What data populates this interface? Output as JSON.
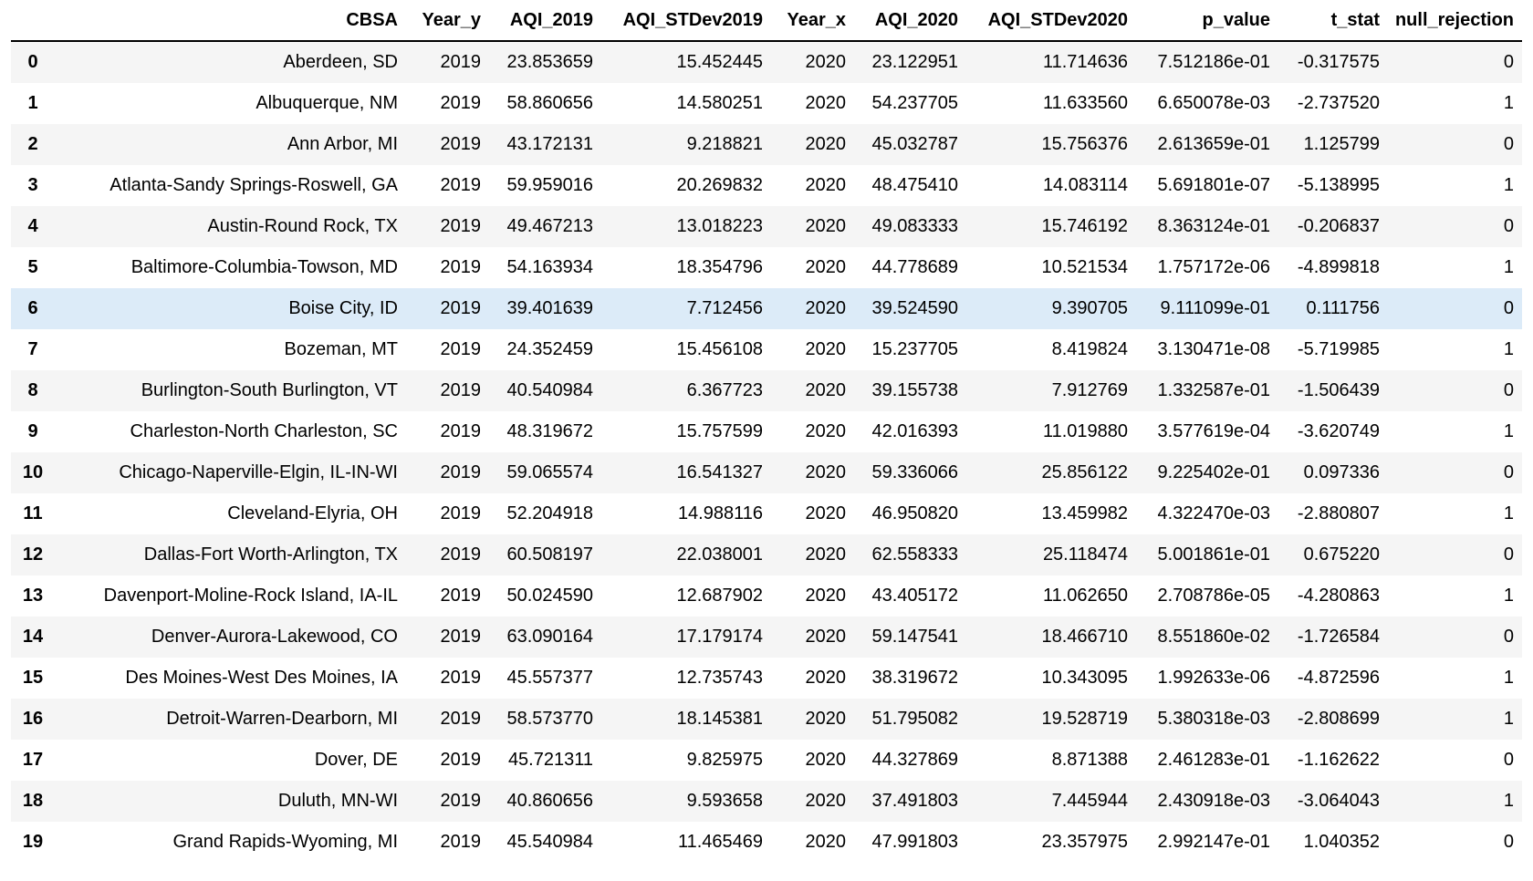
{
  "table": {
    "columns": [
      "",
      "CBSA",
      "Year_y",
      "AQI_2019",
      "AQI_STDev2019",
      "Year_x",
      "AQI_2020",
      "AQI_STDev2020",
      "p_value",
      "t_stat",
      "null_rejection"
    ],
    "rows": [
      [
        "0",
        "Aberdeen, SD",
        "2019",
        "23.853659",
        "15.452445",
        "2020",
        "23.122951",
        "11.714636",
        "7.512186e-01",
        "-0.317575",
        "0"
      ],
      [
        "1",
        "Albuquerque, NM",
        "2019",
        "58.860656",
        "14.580251",
        "2020",
        "54.237705",
        "11.633560",
        "6.650078e-03",
        "-2.737520",
        "1"
      ],
      [
        "2",
        "Ann Arbor, MI",
        "2019",
        "43.172131",
        "9.218821",
        "2020",
        "45.032787",
        "15.756376",
        "2.613659e-01",
        "1.125799",
        "0"
      ],
      [
        "3",
        "Atlanta-Sandy Springs-Roswell, GA",
        "2019",
        "59.959016",
        "20.269832",
        "2020",
        "48.475410",
        "14.083114",
        "5.691801e-07",
        "-5.138995",
        "1"
      ],
      [
        "4",
        "Austin-Round Rock, TX",
        "2019",
        "49.467213",
        "13.018223",
        "2020",
        "49.083333",
        "15.746192",
        "8.363124e-01",
        "-0.206837",
        "0"
      ],
      [
        "5",
        "Baltimore-Columbia-Towson, MD",
        "2019",
        "54.163934",
        "18.354796",
        "2020",
        "44.778689",
        "10.521534",
        "1.757172e-06",
        "-4.899818",
        "1"
      ],
      [
        "6",
        "Boise City, ID",
        "2019",
        "39.401639",
        "7.712456",
        "2020",
        "39.524590",
        "9.390705",
        "9.111099e-01",
        "0.111756",
        "0"
      ],
      [
        "7",
        "Bozeman, MT",
        "2019",
        "24.352459",
        "15.456108",
        "2020",
        "15.237705",
        "8.419824",
        "3.130471e-08",
        "-5.719985",
        "1"
      ],
      [
        "8",
        "Burlington-South Burlington, VT",
        "2019",
        "40.540984",
        "6.367723",
        "2020",
        "39.155738",
        "7.912769",
        "1.332587e-01",
        "-1.506439",
        "0"
      ],
      [
        "9",
        "Charleston-North Charleston, SC",
        "2019",
        "48.319672",
        "15.757599",
        "2020",
        "42.016393",
        "11.019880",
        "3.577619e-04",
        "-3.620749",
        "1"
      ],
      [
        "10",
        "Chicago-Naperville-Elgin, IL-IN-WI",
        "2019",
        "59.065574",
        "16.541327",
        "2020",
        "59.336066",
        "25.856122",
        "9.225402e-01",
        "0.097336",
        "0"
      ],
      [
        "11",
        "Cleveland-Elyria, OH",
        "2019",
        "52.204918",
        "14.988116",
        "2020",
        "46.950820",
        "13.459982",
        "4.322470e-03",
        "-2.880807",
        "1"
      ],
      [
        "12",
        "Dallas-Fort Worth-Arlington, TX",
        "2019",
        "60.508197",
        "22.038001",
        "2020",
        "62.558333",
        "25.118474",
        "5.001861e-01",
        "0.675220",
        "0"
      ],
      [
        "13",
        "Davenport-Moline-Rock Island, IA-IL",
        "2019",
        "50.024590",
        "12.687902",
        "2020",
        "43.405172",
        "11.062650",
        "2.708786e-05",
        "-4.280863",
        "1"
      ],
      [
        "14",
        "Denver-Aurora-Lakewood, CO",
        "2019",
        "63.090164",
        "17.179174",
        "2020",
        "59.147541",
        "18.466710",
        "8.551860e-02",
        "-1.726584",
        "0"
      ],
      [
        "15",
        "Des Moines-West Des Moines, IA",
        "2019",
        "45.557377",
        "12.735743",
        "2020",
        "38.319672",
        "10.343095",
        "1.992633e-06",
        "-4.872596",
        "1"
      ],
      [
        "16",
        "Detroit-Warren-Dearborn, MI",
        "2019",
        "58.573770",
        "18.145381",
        "2020",
        "51.795082",
        "19.528719",
        "5.380318e-03",
        "-2.808699",
        "1"
      ],
      [
        "17",
        "Dover, DE",
        "2019",
        "45.721311",
        "9.825975",
        "2020",
        "44.327869",
        "8.871388",
        "2.461283e-01",
        "-1.162622",
        "0"
      ],
      [
        "18",
        "Duluth, MN-WI",
        "2019",
        "40.860656",
        "9.593658",
        "2020",
        "37.491803",
        "7.445944",
        "2.430918e-03",
        "-3.064043",
        "1"
      ],
      [
        "19",
        "Grand Rapids-Wyoming, MI",
        "2019",
        "45.540984",
        "11.465469",
        "2020",
        "47.991803",
        "23.357975",
        "2.992147e-01",
        "1.040352",
        "0"
      ]
    ],
    "highlighted_row": 6,
    "colors": {
      "stripe": "#f5f5f5",
      "hover": "#dcebf8",
      "header_rule": "#000000"
    }
  }
}
